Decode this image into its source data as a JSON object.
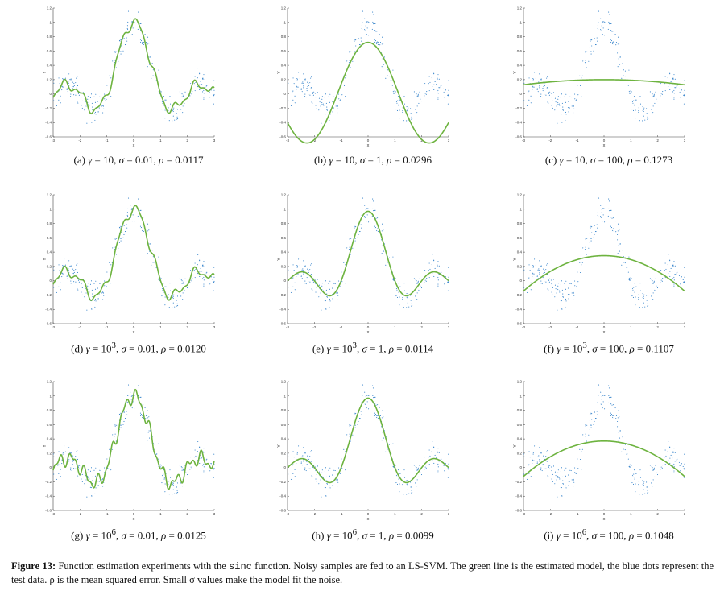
{
  "figure": {
    "caption_label": "Figure 13:",
    "caption_pre": " Function estimation experiments with the ",
    "caption_code": "sinc",
    "caption_post": " function. Noisy samples are fed to an LS-SVM. The green line is the estimated model, the blue dots represent the test data. ρ is the mean squared error. Small σ values make the model fit the noise."
  },
  "colors": {
    "fit": "#6db33f",
    "points": "#2f7fc9",
    "axis": "#444444"
  },
  "chart_data": [
    {
      "type": "scatter",
      "label": "(a)",
      "gamma_base": "10",
      "gamma_exp": "",
      "sigma": "0.01",
      "rho": "0.0117",
      "xlabel": "x",
      "ylabel": "Y",
      "xlim": [
        -3,
        3
      ],
      "ylim": [
        -0.6,
        1.2
      ],
      "model": "wiggly",
      "noise": 0.15
    },
    {
      "type": "scatter",
      "label": "(b)",
      "gamma_base": "10",
      "gamma_exp": "",
      "sigma": "1",
      "rho": "0.0296",
      "xlabel": "x",
      "ylabel": "Y",
      "xlim": [
        -3,
        3
      ],
      "ylim": [
        -0.6,
        1.2
      ],
      "model": "smooth_damped",
      "noise": 0.15
    },
    {
      "type": "scatter",
      "label": "(c)",
      "gamma_base": "10",
      "gamma_exp": "",
      "sigma": "100",
      "rho": "0.1273",
      "xlabel": "x",
      "ylabel": "Y",
      "xlim": [
        -3,
        3
      ],
      "ylim": [
        -0.6,
        1.2
      ],
      "model": "flat",
      "noise": 0.15
    },
    {
      "type": "scatter",
      "label": "(d)",
      "gamma_base": "10",
      "gamma_exp": "3",
      "sigma": "0.01",
      "rho": "0.0120",
      "xlabel": "x",
      "ylabel": "Y",
      "xlim": [
        -3,
        3
      ],
      "ylim": [
        -0.6,
        1.2
      ],
      "model": "wiggly",
      "noise": 0.15
    },
    {
      "type": "scatter",
      "label": "(e)",
      "gamma_base": "10",
      "gamma_exp": "3",
      "sigma": "1",
      "rho": "0.0114",
      "xlabel": "x",
      "ylabel": "Y",
      "xlim": [
        -3,
        3
      ],
      "ylim": [
        -0.6,
        1.2
      ],
      "model": "sinc_fit",
      "noise": 0.15
    },
    {
      "type": "scatter",
      "label": "(f)",
      "gamma_base": "10",
      "gamma_exp": "3",
      "sigma": "100",
      "rho": "0.1107",
      "xlabel": "x",
      "ylabel": "Y",
      "xlim": [
        -3,
        3
      ],
      "ylim": [
        -0.6,
        1.2
      ],
      "model": "parabola_low",
      "noise": 0.15
    },
    {
      "type": "scatter",
      "label": "(g)",
      "gamma_base": "10",
      "gamma_exp": "6",
      "sigma": "0.01",
      "rho": "0.0125",
      "xlabel": "x",
      "ylabel": "Y",
      "xlim": [
        -3,
        3
      ],
      "ylim": [
        -0.6,
        1.2
      ],
      "model": "very_wiggly",
      "noise": 0.15
    },
    {
      "type": "scatter",
      "label": "(h)",
      "gamma_base": "10",
      "gamma_exp": "6",
      "sigma": "1",
      "rho": "0.0099",
      "xlabel": "x",
      "ylabel": "Y",
      "xlim": [
        -3,
        3
      ],
      "ylim": [
        -0.6,
        1.2
      ],
      "model": "sinc_fit",
      "noise": 0.15
    },
    {
      "type": "scatter",
      "label": "(i)",
      "gamma_base": "10",
      "gamma_exp": "6",
      "sigma": "100",
      "rho": "0.1048",
      "xlabel": "x",
      "ylabel": "Y",
      "xlim": [
        -3,
        3
      ],
      "ylim": [
        -0.6,
        1.2
      ],
      "model": "parabola_high",
      "noise": 0.15
    }
  ]
}
